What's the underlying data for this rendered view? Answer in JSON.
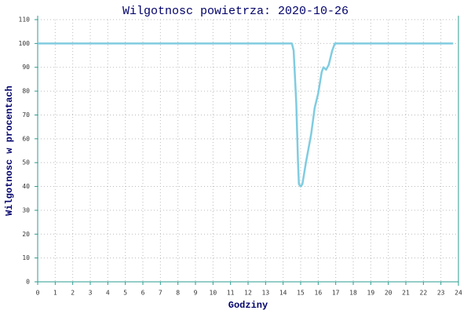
{
  "chart_data": {
    "type": "line",
    "title": "Wilgotnosc powietrza: 2020-10-26",
    "x_label": "Godziny",
    "y_label": "Wilgotnosc w procentach",
    "x": [
      0,
      14.5,
      14.6,
      14.75,
      14.85,
      14.9,
      15.0,
      15.1,
      15.3,
      15.6,
      15.8,
      16.0,
      16.2,
      16.3,
      16.45,
      16.6,
      16.8,
      16.95,
      17.2,
      23.7
    ],
    "values": [
      100,
      100,
      97,
      75,
      50,
      41,
      40,
      41,
      50,
      62,
      73,
      79,
      88,
      90,
      89,
      91,
      97,
      100,
      100,
      100
    ],
    "color": "#80cce0",
    "xlim": [
      0,
      24
    ],
    "xticks": [
      0,
      1,
      2,
      3,
      4,
      5,
      6,
      7,
      8,
      9,
      10,
      11,
      12,
      13,
      14,
      15,
      16,
      17,
      18,
      19,
      20,
      21,
      22,
      23,
      24
    ],
    "ylim": [
      0,
      110
    ],
    "yticks": [
      0,
      10,
      20,
      30,
      40,
      50,
      60,
      70,
      80,
      90,
      100,
      110
    ],
    "grid": true
  }
}
